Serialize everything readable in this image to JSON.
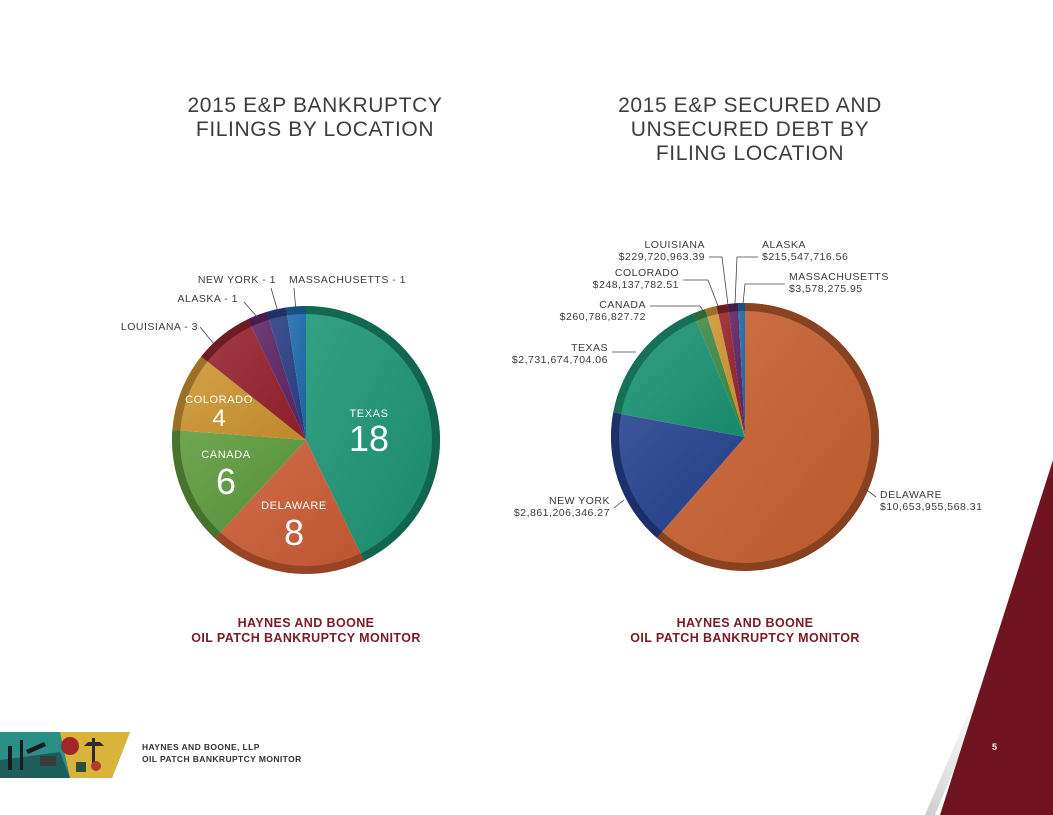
{
  "titles": {
    "left": "2015 E&P BANKRUPTCY FILINGS BY LOCATION",
    "right": "2015 E&P SECURED AND UNSECURED DEBT BY FILING LOCATION"
  },
  "credits": {
    "left_line1": "HAYNES AND BOONE",
    "left_line2": "OIL PATCH BANKRUPTCY MONITOR",
    "right_line1": "HAYNES AND BOONE",
    "right_line2": "OIL PATCH BANKRUPTCY MONITOR"
  },
  "footer": {
    "line1": "HAYNES AND BOONE, LLP",
    "line2": "OIL PATCH BANKRUPTCY MONITOR",
    "page_number": "5"
  },
  "chart_data": [
    {
      "type": "pie",
      "title": "2015 E&P BANKRUPTCY FILINGS BY LOCATION",
      "categories": [
        "TEXAS",
        "DELAWARE",
        "CANADA",
        "COLORADO",
        "LOUISIANA",
        "ALASKA",
        "NEW YORK",
        "MASSACHUSETTS"
      ],
      "values": [
        18,
        8,
        6,
        4,
        3,
        1,
        1,
        1
      ],
      "labels": [
        "TEXAS",
        "DELAWARE",
        "CANADA",
        "COLORADO",
        "LOUISIANA - 3",
        "ALASKA - 1",
        "NEW YORK - 1",
        "MASSACHUSETTS - 1"
      ],
      "value_labels": [
        "18",
        "8",
        "6",
        "4",
        "",
        "",
        "",
        ""
      ],
      "colors": [
        "#1a9473",
        "#cc5a34",
        "#5b9a3c",
        "#cf9530",
        "#96212c",
        "#5e2466",
        "#283f86",
        "#1c6cae"
      ]
    },
    {
      "type": "pie",
      "title": "2015 E&P SECURED AND UNSECURED DEBT BY FILING LOCATION",
      "categories": [
        "DELAWARE",
        "NEW YORK",
        "TEXAS",
        "CANADA",
        "COLORADO",
        "LOUISIANA",
        "ALASKA",
        "MASSACHUSETTS"
      ],
      "values": [
        10653955568.31,
        2861206346.27,
        2731674704.06,
        260786827.72,
        248137782.51,
        229720963.39,
        215547716.56,
        3578275.95
      ],
      "value_labels": [
        "$10,653,955,568.31",
        "$2,861,206,346.27",
        "$2,731,674,704.06",
        "$260,786,827.72",
        "$248,137,782.51",
        "$229,720,963.39",
        "$215,547,716.56",
        "$3,578,275.95"
      ],
      "colors": [
        "#c8602f",
        "#23408f",
        "#1a9473",
        "#3d8a45",
        "#cf9530",
        "#96212c",
        "#5e2466",
        "#1c6cae"
      ]
    }
  ]
}
